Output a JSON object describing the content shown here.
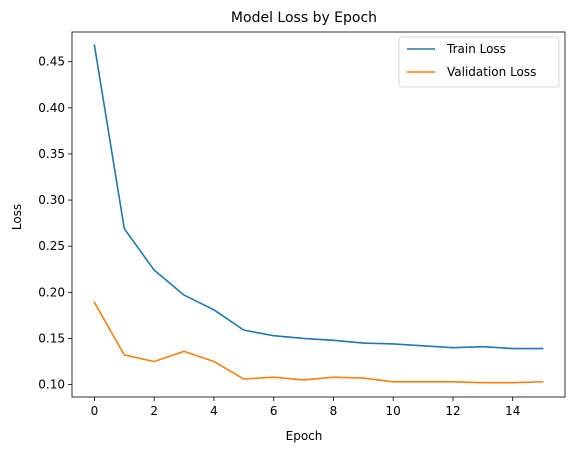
{
  "chart_data": {
    "type": "line",
    "title": "Model Loss by Epoch",
    "xlabel": "Epoch",
    "ylabel": "Loss",
    "x": [
      0,
      1,
      2,
      3,
      4,
      5,
      6,
      7,
      8,
      9,
      10,
      11,
      12,
      13,
      14,
      15
    ],
    "xlim": [
      -0.75,
      15.75
    ],
    "ylim": [
      0.0865,
      0.4822
    ],
    "xticks": [
      0,
      2,
      4,
      6,
      8,
      10,
      12,
      14
    ],
    "xtick_labels": [
      "0",
      "2",
      "4",
      "6",
      "8",
      "10",
      "12",
      "14"
    ],
    "yticks": [
      0.1,
      0.15,
      0.2,
      0.25,
      0.3,
      0.35,
      0.4,
      0.45
    ],
    "ytick_labels": [
      "0.10",
      "0.15",
      "0.20",
      "0.25",
      "0.30",
      "0.35",
      "0.40",
      "0.45"
    ],
    "grid": false,
    "legend_position": "top-right",
    "series": [
      {
        "name": "Train Loss",
        "color": "#1f77b4",
        "values": [
          0.468,
          0.269,
          0.224,
          0.197,
          0.181,
          0.159,
          0.153,
          0.15,
          0.148,
          0.145,
          0.144,
          0.142,
          0.14,
          0.141,
          0.139,
          0.139
        ]
      },
      {
        "name": "Validation Loss",
        "color": "#ff7f0e",
        "values": [
          0.189,
          0.132,
          0.125,
          0.136,
          0.125,
          0.106,
          0.108,
          0.105,
          0.108,
          0.107,
          0.103,
          0.103,
          0.103,
          0.102,
          0.102,
          0.103
        ]
      }
    ]
  }
}
